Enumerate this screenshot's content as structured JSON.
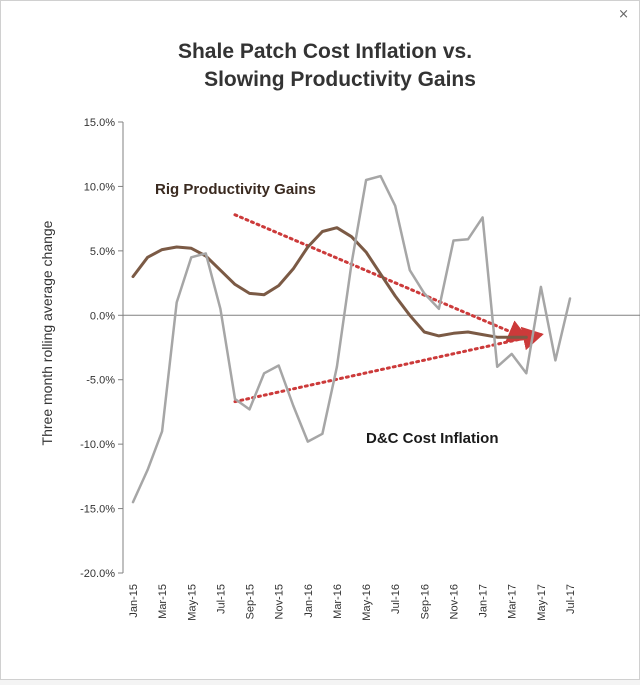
{
  "window": {
    "close_glyph": "×"
  },
  "chart_data": {
    "type": "line",
    "title_lines": [
      "Shale Patch Cost Inflation vs.",
      "Slowing Productivity Gains"
    ],
    "ylabel": "Three month rolling average change",
    "xlabel": "",
    "ylim": [
      -20,
      15
    ],
    "yticks": [
      15,
      10,
      5,
      0,
      -5,
      -10,
      -15,
      -20
    ],
    "ytick_labels": [
      "15.0%",
      "10.0%",
      "5.0%",
      "0.0%",
      "-5.0%",
      "-10.0%",
      "-15.0%",
      "-20.0%"
    ],
    "x_tick_labels": [
      "Jan-15",
      "Mar-15",
      "May-15",
      "Jul-15",
      "Sep-15",
      "Nov-15",
      "Jan-16",
      "Mar-16",
      "May-16",
      "Jul-16",
      "Sep-16",
      "Nov-16",
      "Jan-17",
      "Mar-17",
      "May-17",
      "Jul-17"
    ],
    "months": [
      "Jan-15",
      "Feb-15",
      "Mar-15",
      "Apr-15",
      "May-15",
      "Jun-15",
      "Jul-15",
      "Aug-15",
      "Sep-15",
      "Oct-15",
      "Nov-15",
      "Dec-15",
      "Jan-16",
      "Feb-16",
      "Mar-16",
      "Apr-16",
      "May-16",
      "Jun-16",
      "Jul-16",
      "Aug-16",
      "Sep-16",
      "Oct-16",
      "Nov-16",
      "Dec-16",
      "Jan-17",
      "Feb-17",
      "Mar-17",
      "Apr-17",
      "May-17",
      "Jun-17",
      "Jul-17",
      "Aug-17"
    ],
    "series": [
      {
        "name": "Rig Productivity Gains",
        "color": "#7b5a45",
        "values": [
          3.0,
          4.5,
          5.1,
          5.3,
          5.2,
          4.6,
          3.5,
          2.4,
          1.7,
          1.6,
          2.3,
          3.6,
          5.3,
          6.5,
          6.8,
          6.1,
          4.9,
          3.2,
          1.5,
          0.0,
          -1.3,
          -1.6,
          -1.4,
          -1.3,
          -1.5,
          -1.7,
          -1.7,
          -1.7
        ]
      },
      {
        "name": "D&C Cost Inflation",
        "color": "#a6a6a6",
        "values": [
          -14.5,
          -12.0,
          -9.0,
          1.0,
          4.5,
          4.8,
          0.5,
          -6.5,
          -7.3,
          -4.5,
          -3.9,
          -7.0,
          -9.8,
          -9.2,
          -4.0,
          4.0,
          10.5,
          10.8,
          8.5,
          3.5,
          1.7,
          0.5,
          5.8,
          5.9,
          7.6,
          -4.0,
          -3.0,
          -4.5,
          2.2,
          -3.5,
          1.3
        ]
      }
    ],
    "annotations": [
      {
        "text": "Rig Productivity Gains",
        "color": "#3a2a20"
      },
      {
        "text": "D&C Cost Inflation",
        "color": "#1a1a1a"
      }
    ],
    "trendlines": [
      {
        "name": "productivity-trend",
        "from_month": "Aug-15",
        "from_value": 7.8,
        "to_month": "Apr-17",
        "to_value": -1.8,
        "color": "#cc3a3a"
      },
      {
        "name": "cost-trend",
        "from_month": "Aug-15",
        "from_value": -6.7,
        "to_month": "May-17",
        "to_value": -1.5,
        "color": "#cc3a3a"
      }
    ]
  }
}
